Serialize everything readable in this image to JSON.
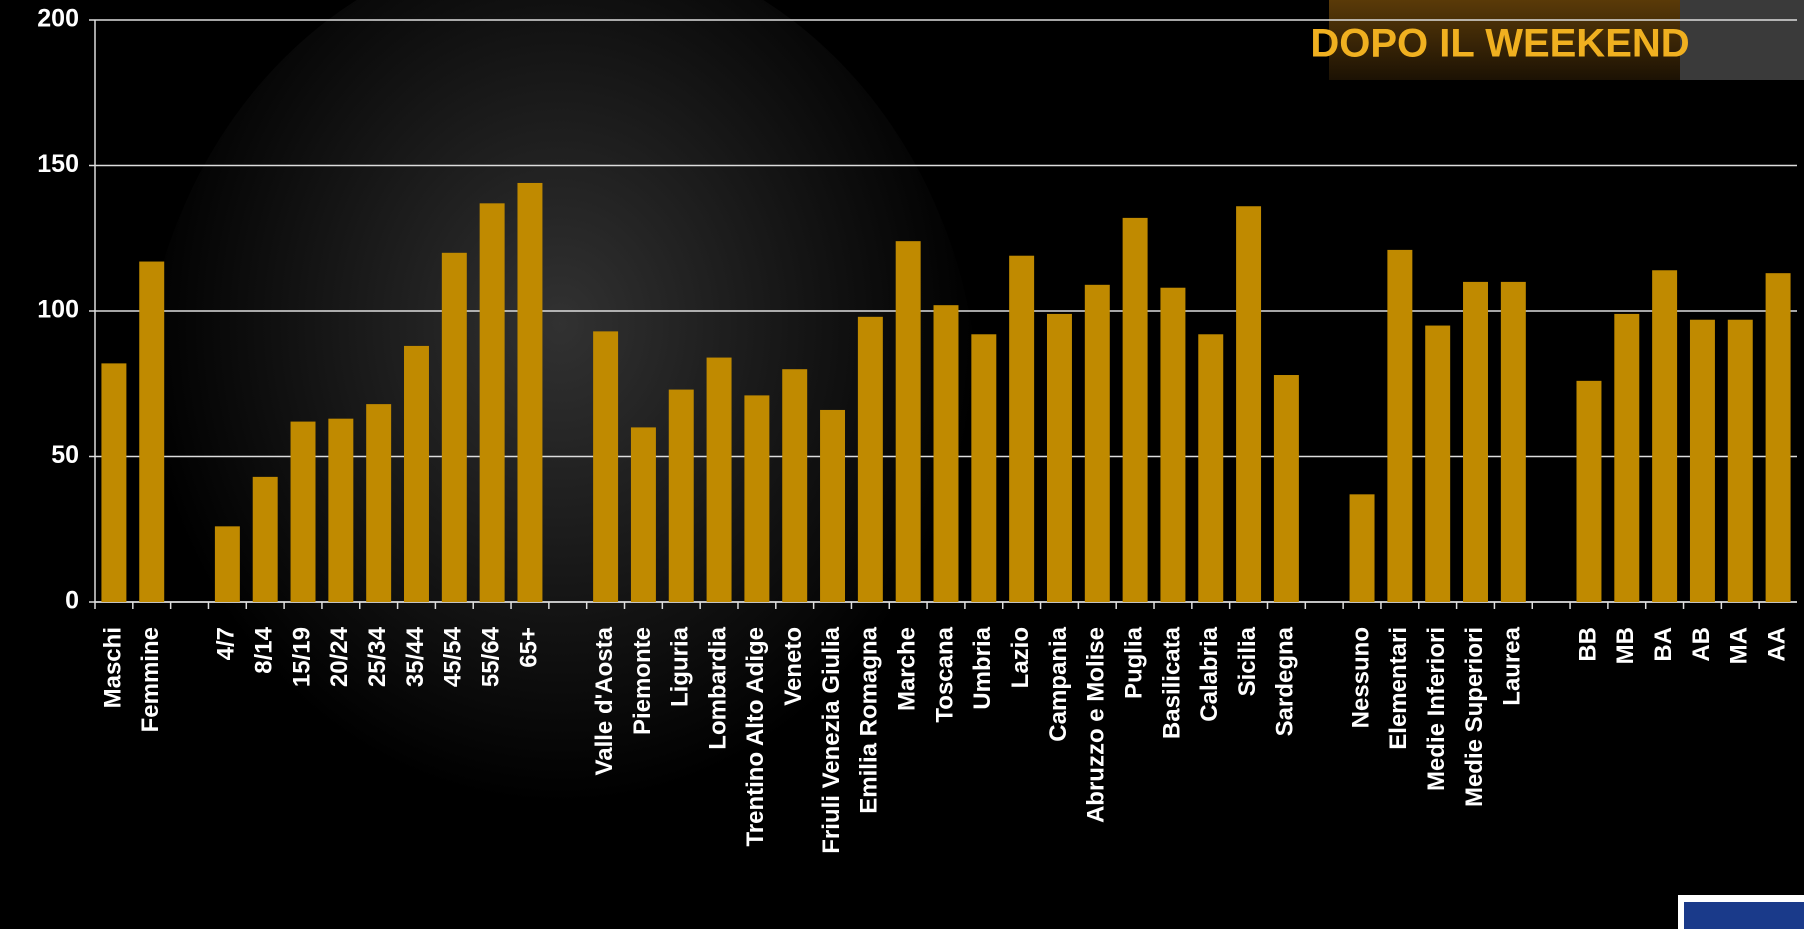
{
  "banner": "DOPO IL WEEKEND",
  "chart_data": {
    "type": "bar",
    "categories": [
      "Maschi",
      "Femmine",
      null,
      "4/7",
      "8/14",
      "15/19",
      "20/24",
      "25/34",
      "35/44",
      "45/54",
      "55/64",
      "65+",
      null,
      "Valle d'Aosta",
      "Piemonte",
      "Liguria",
      "Lombardia",
      "Trentino Alto Adige",
      "Veneto",
      "Friuli Venezia Giulia",
      "Emilia Romagna",
      "Marche",
      "Toscana",
      "Umbria",
      "Lazio",
      "Campania",
      "Abruzzo e Molise",
      "Puglia",
      "Basilicata",
      "Calabria",
      "Sicilia",
      "Sardegna",
      null,
      "Nessuno",
      "Elementari",
      "Medie Inferiori",
      "Medie Superiori",
      "Laurea",
      null,
      "BB",
      "MB",
      "BA",
      "AB",
      "MA",
      "AA"
    ],
    "values": [
      82,
      117,
      null,
      26,
      43,
      62,
      63,
      68,
      88,
      120,
      137,
      144,
      null,
      93,
      60,
      73,
      84,
      71,
      80,
      66,
      98,
      124,
      102,
      92,
      119,
      99,
      109,
      132,
      108,
      92,
      136,
      78,
      null,
      37,
      121,
      95,
      110,
      110,
      null,
      76,
      99,
      114,
      97,
      97,
      113
    ],
    "color": "#c08a00",
    "ylim": [
      0,
      200
    ],
    "yticks": [
      0,
      50,
      100,
      150,
      200
    ],
    "grid": true
  }
}
